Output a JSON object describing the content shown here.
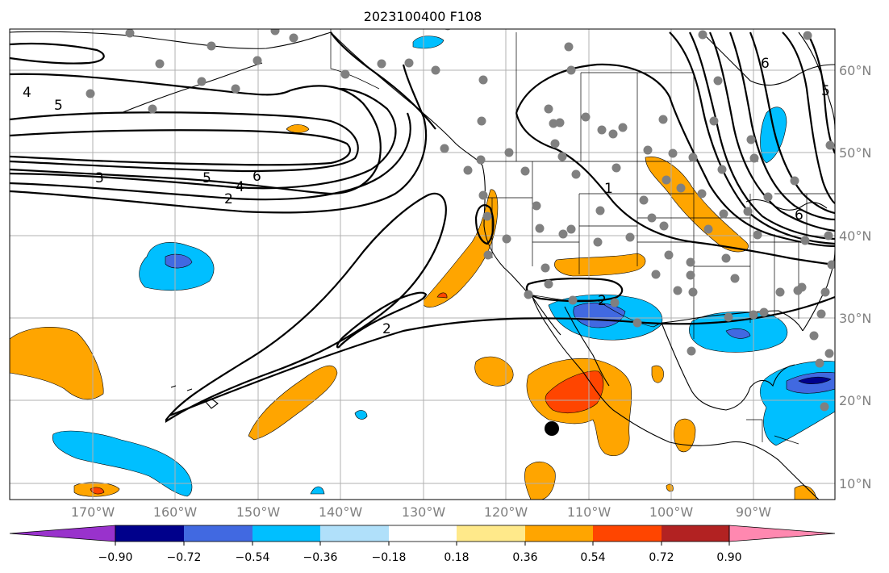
{
  "title": "2023100400 F108",
  "map": {
    "lat_labels": [
      "60°N",
      "50°N",
      "40°N",
      "30°N",
      "20°N",
      "10°N"
    ],
    "lon_labels": [
      "170°W",
      "160°W",
      "150°W",
      "140°W",
      "130°W",
      "120°W",
      "110°W",
      "100°W",
      "90°W"
    ],
    "contour_labels": [
      "4",
      "5",
      "3",
      "5",
      "6",
      "4",
      "2",
      "1",
      "2",
      "2",
      "6",
      "5",
      "6"
    ],
    "colors": {
      "orange": "#ffa500",
      "red_orange": "#ff4500",
      "deep_sky_blue": "#00bfff",
      "royal_blue": "#4169e1",
      "navy": "#00008b",
      "blue_violet": "#9932cc",
      "light_blue": "#b0e0fa",
      "light_yellow": "#ffe98a",
      "firebrick": "#b22222",
      "pink": "#ff88b0",
      "station_dot": "#808080",
      "marker": "#000000"
    }
  },
  "colorbar": {
    "ticks": [
      "−0.90",
      "−0.72",
      "−0.54",
      "−0.36",
      "−0.18",
      "0.18",
      "0.36",
      "0.54",
      "0.72",
      "0.90"
    ],
    "segment_colors": [
      "#9932cc",
      "#00008b",
      "#4169e1",
      "#00bfff",
      "#b0e0fa",
      "#ffffff",
      "#ffe98a",
      "#ffa500",
      "#ff4500",
      "#b22222",
      "#ff88b0"
    ]
  }
}
